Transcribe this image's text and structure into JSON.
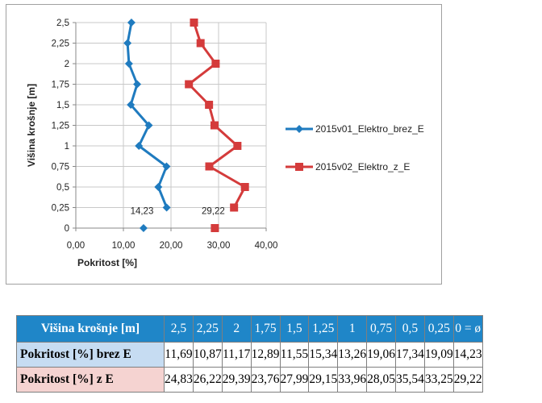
{
  "chart_data": {
    "type": "line",
    "orientation": "vertical-profile",
    "xlabel": "Pokritost [%]",
    "ylabel": "Višina krošnje [m]",
    "xlim": [
      0,
      40
    ],
    "ylim": [
      0,
      2.5
    ],
    "xticks": [
      "0,00",
      "10,00",
      "20,00",
      "30,00",
      "40,00"
    ],
    "yticks": [
      "0",
      "0,25",
      "0,5",
      "0,75",
      "1",
      "1,25",
      "1,5",
      "1,75",
      "2",
      "2,25",
      "2,5"
    ],
    "grid": "horizontal and vertical",
    "legend_position": "right",
    "series": [
      {
        "name": "2015v01_Elektro_brez_E",
        "color": "#1f7bbf",
        "marker": "diamond",
        "y": [
          2.5,
          2.25,
          2,
          1.75,
          1.5,
          1.25,
          1,
          0.75,
          0.5,
          0.25
        ],
        "x": [
          11.69,
          10.87,
          11.17,
          12.89,
          11.55,
          15.34,
          13.26,
          19.06,
          17.34,
          19.09
        ],
        "ground_value": 14.23,
        "ground_label": "14,23"
      },
      {
        "name": "2015v02_Elektro_z_E",
        "color": "#d43b3b",
        "marker": "square",
        "y": [
          2.5,
          2.25,
          2,
          1.75,
          1.5,
          1.25,
          1,
          0.75,
          0.5,
          0.25
        ],
        "x": [
          24.83,
          26.22,
          29.39,
          23.76,
          27.99,
          29.15,
          33.96,
          28.05,
          35.54,
          33.25
        ],
        "ground_value": 29.22,
        "ground_label": "29,22"
      }
    ]
  },
  "table": {
    "header_label": "Višina krošnje [m]",
    "columns": [
      "2,5",
      "2,25",
      "2",
      "1,75",
      "1,5",
      "1,25",
      "1",
      "0,75",
      "0,5",
      "0,25",
      "0 = ø"
    ],
    "rows": [
      {
        "label": "Pokritost [%] brez E",
        "values": [
          "11,69",
          "10,87",
          "11,17",
          "12,89",
          "11,55",
          "15,34",
          "13,26",
          "19,06",
          "17,34",
          "19,09",
          "14,23"
        ]
      },
      {
        "label": "Pokritost [%] z E",
        "values": [
          "24,83",
          "26,22",
          "29,39",
          "23,76",
          "27,99",
          "29,15",
          "33,96",
          "28,05",
          "35,54",
          "33,25",
          "29,22"
        ]
      }
    ]
  }
}
